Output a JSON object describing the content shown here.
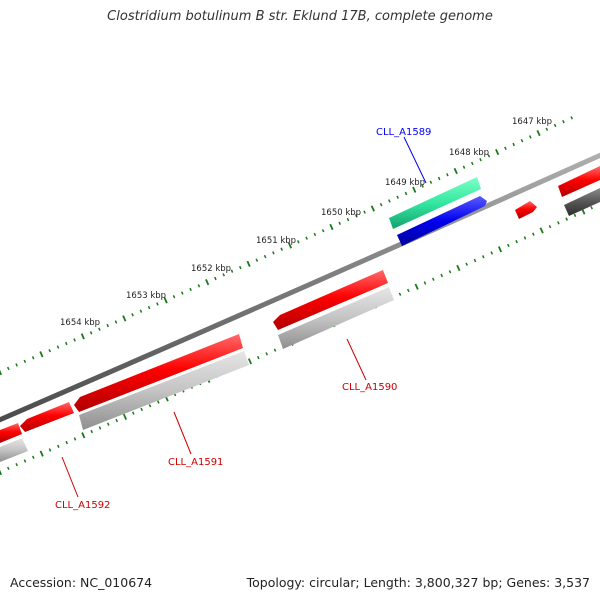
{
  "title": "Clostridium botulinum B str. Eklund 17B, complete genome",
  "footer": {
    "accession": "Accession: NC_010674",
    "summary": "Topology: circular; Length: 3,800,327 bp; Genes: 3,537"
  },
  "colors": {
    "backbone": "#808080",
    "forward_cds": "#ff0000",
    "reverse_cds": "#bfbfbf",
    "highlight_label_forward": "#0000ff",
    "highlight_label_reverse": "#cc0000",
    "tick": "#1a7a1a",
    "gene_teal": "#33e8a0",
    "gene_blue": "#0000ee",
    "gene_dark": "#555555"
  },
  "scale_labels": [
    "1647 kbp",
    "1648 kbp",
    "1649 kbp",
    "1650 kbp",
    "1651 kbp",
    "1652 kbp",
    "1653 kbp",
    "1654 kbp"
  ],
  "gene_labels": [
    {
      "id": "CLL_A1589",
      "strand": "forward"
    },
    {
      "id": "CLL_A1590",
      "strand": "reverse"
    },
    {
      "id": "CLL_A1591",
      "strand": "reverse"
    },
    {
      "id": "CLL_A1592",
      "strand": "reverse"
    }
  ]
}
